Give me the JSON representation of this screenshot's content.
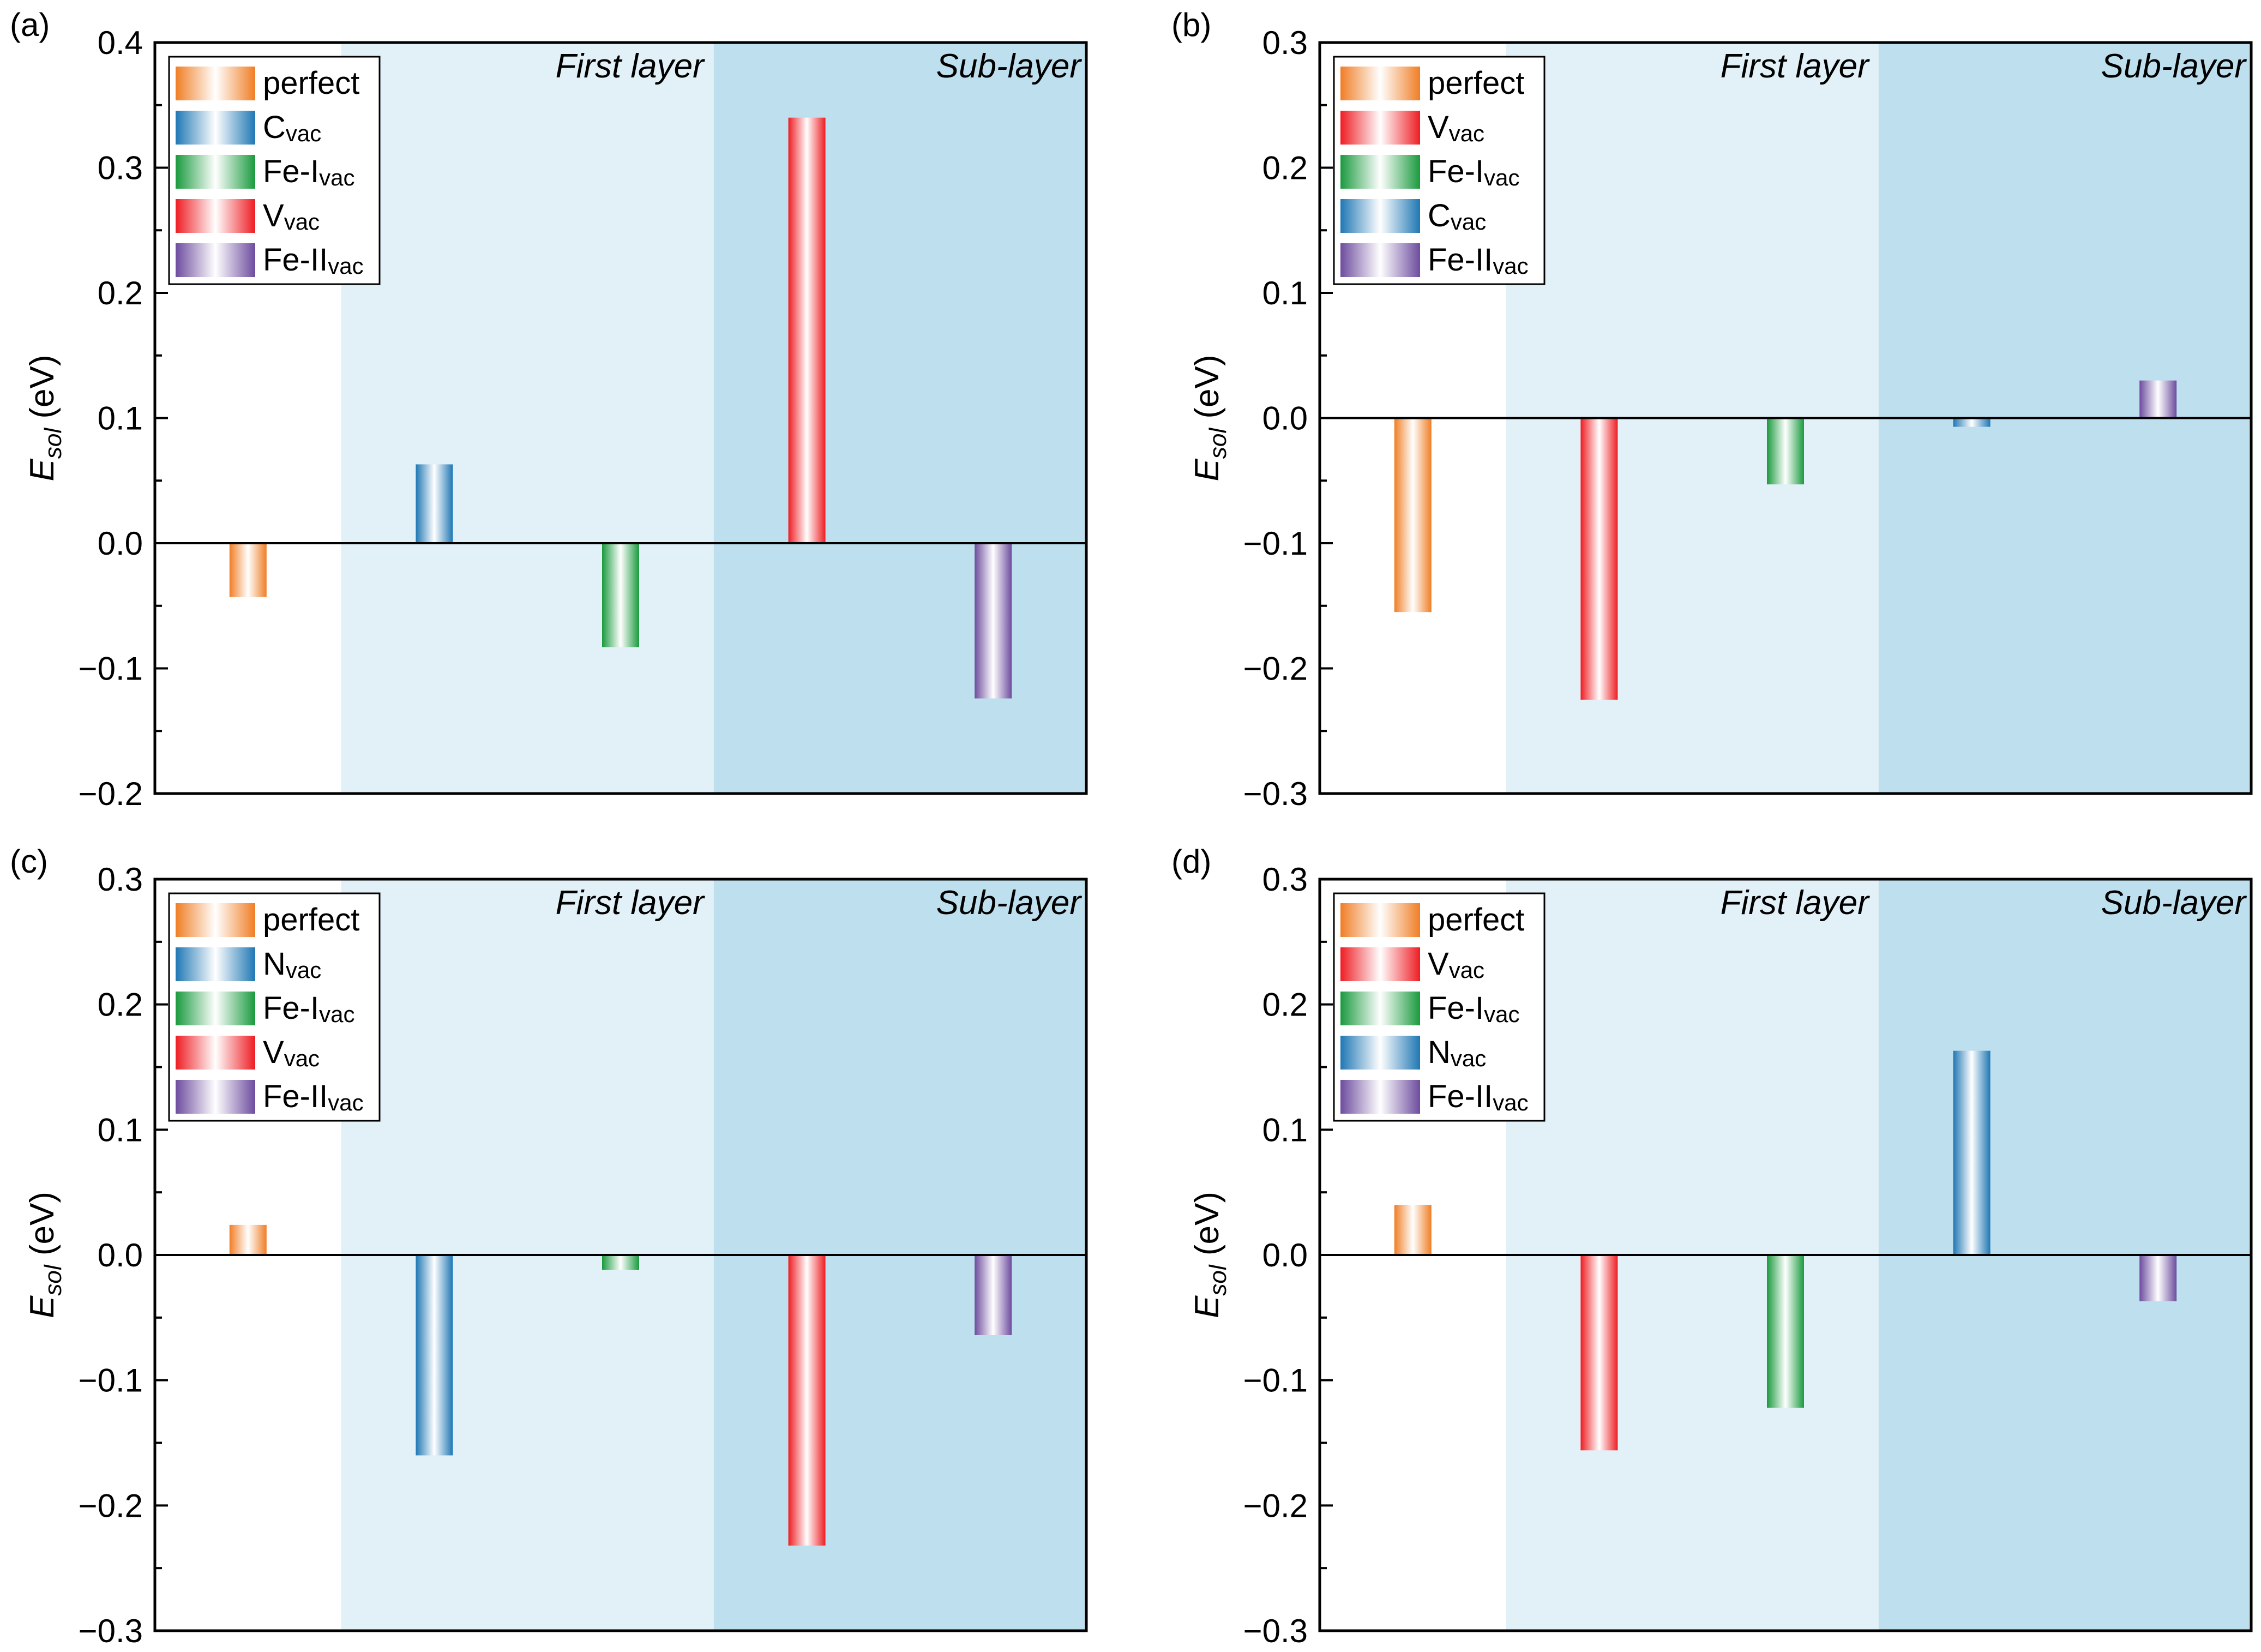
{
  "figure": {
    "region_labels": {
      "first": "First layer",
      "sub": "Sub-layer"
    },
    "colors": {
      "perfect": "#F07E26",
      "C": "#1F77B4",
      "N": "#1F77B4",
      "FeI": "#1A9A3E",
      "V": "#EE1D23",
      "FeII": "#6D4C9E",
      "first_layer_bg": "#E2F0F7",
      "sub_layer_bg": "#BEDFEE"
    }
  },
  "chart_data": [
    {
      "type": "bar",
      "panel_label": "(a)",
      "ylabel": {
        "main": "E",
        "sub": "sol",
        "unit": " (eV)"
      },
      "ylim": [
        -0.2,
        0.4
      ],
      "yticks": [
        -0.2,
        -0.1,
        0.0,
        0.1,
        0.2,
        0.3,
        0.4
      ],
      "ytick_labels": [
        "−0.2",
        "−0.1",
        "0.0",
        "0.1",
        "0.2",
        "0.3",
        "0.4"
      ],
      "categories": [
        "perfect",
        "Cvac",
        "Fe-Ivac",
        "Vvac",
        "Fe-IIvac"
      ],
      "values": [
        -0.043,
        0.063,
        -0.083,
        0.34,
        -0.124
      ],
      "series_keys": [
        "perfect",
        "C",
        "FeI",
        "V",
        "FeII"
      ],
      "legend": [
        {
          "main": "perfect",
          "sub": "",
          "key": "perfect"
        },
        {
          "main": "C",
          "sub": "vac",
          "key": "C"
        },
        {
          "main": "Fe-I",
          "sub": "vac",
          "key": "FeI"
        },
        {
          "main": "V",
          "sub": "vac",
          "key": "V"
        },
        {
          "main": "Fe-II",
          "sub": "vac",
          "key": "FeII"
        }
      ]
    },
    {
      "type": "bar",
      "panel_label": "(b)",
      "ylabel": {
        "main": "E",
        "sub": "sol",
        "unit": " (eV)"
      },
      "ylim": [
        -0.3,
        0.3
      ],
      "yticks": [
        -0.3,
        -0.2,
        -0.1,
        0.0,
        0.1,
        0.2,
        0.3
      ],
      "ytick_labels": [
        "−0.3",
        "−0.2",
        "−0.1",
        "0.0",
        "0.1",
        "0.2",
        "0.3"
      ],
      "categories": [
        "perfect",
        "Vvac",
        "Fe-Ivac",
        "Cvac",
        "Fe-IIvac"
      ],
      "values": [
        -0.155,
        -0.225,
        -0.053,
        -0.007,
        0.03
      ],
      "series_keys": [
        "perfect",
        "V",
        "FeI",
        "C",
        "FeII"
      ],
      "legend": [
        {
          "main": "perfect",
          "sub": "",
          "key": "perfect"
        },
        {
          "main": "V",
          "sub": "vac",
          "key": "V"
        },
        {
          "main": "Fe-I",
          "sub": "vac",
          "key": "FeI"
        },
        {
          "main": "C",
          "sub": "vac",
          "key": "C"
        },
        {
          "main": "Fe-II",
          "sub": "vac",
          "key": "FeII"
        }
      ]
    },
    {
      "type": "bar",
      "panel_label": "(c)",
      "ylabel": {
        "main": "E",
        "sub": "sol",
        "unit": " (eV)"
      },
      "ylim": [
        -0.3,
        0.3
      ],
      "yticks": [
        -0.3,
        -0.2,
        -0.1,
        0.0,
        0.1,
        0.2,
        0.3
      ],
      "ytick_labels": [
        "−0.3",
        "−0.2",
        "−0.1",
        "0.0",
        "0.1",
        "0.2",
        "0.3"
      ],
      "categories": [
        "perfect",
        "Nvac",
        "Fe-Ivac",
        "Vvac",
        "Fe-IIvac"
      ],
      "values": [
        0.024,
        -0.16,
        -0.012,
        -0.232,
        -0.064
      ],
      "series_keys": [
        "perfect",
        "N",
        "FeI",
        "V",
        "FeII"
      ],
      "legend": [
        {
          "main": "perfect",
          "sub": "",
          "key": "perfect"
        },
        {
          "main": "N",
          "sub": "vac",
          "key": "N"
        },
        {
          "main": "Fe-I",
          "sub": "vac",
          "key": "FeI"
        },
        {
          "main": "V",
          "sub": "vac",
          "key": "V"
        },
        {
          "main": "Fe-II",
          "sub": "vac",
          "key": "FeII"
        }
      ]
    },
    {
      "type": "bar",
      "panel_label": "(d)",
      "ylabel": {
        "main": "E",
        "sub": "sol",
        "unit": " (eV)"
      },
      "ylim": [
        -0.3,
        0.3
      ],
      "yticks": [
        -0.3,
        -0.2,
        -0.1,
        0.0,
        0.1,
        0.2,
        0.3
      ],
      "ytick_labels": [
        "−0.3",
        "−0.2",
        "−0.1",
        "0.0",
        "0.1",
        "0.2",
        "0.3"
      ],
      "categories": [
        "perfect",
        "Vvac",
        "Fe-Ivac",
        "Nvac",
        "Fe-IIvac"
      ],
      "values": [
        0.04,
        -0.156,
        -0.122,
        0.163,
        -0.037
      ],
      "series_keys": [
        "perfect",
        "V",
        "FeI",
        "N",
        "FeII"
      ],
      "legend": [
        {
          "main": "perfect",
          "sub": "",
          "key": "perfect"
        },
        {
          "main": "V",
          "sub": "vac",
          "key": "V"
        },
        {
          "main": "Fe-I",
          "sub": "vac",
          "key": "FeI"
        },
        {
          "main": "N",
          "sub": "vac",
          "key": "N"
        },
        {
          "main": "Fe-II",
          "sub": "vac",
          "key": "FeII"
        }
      ]
    }
  ]
}
